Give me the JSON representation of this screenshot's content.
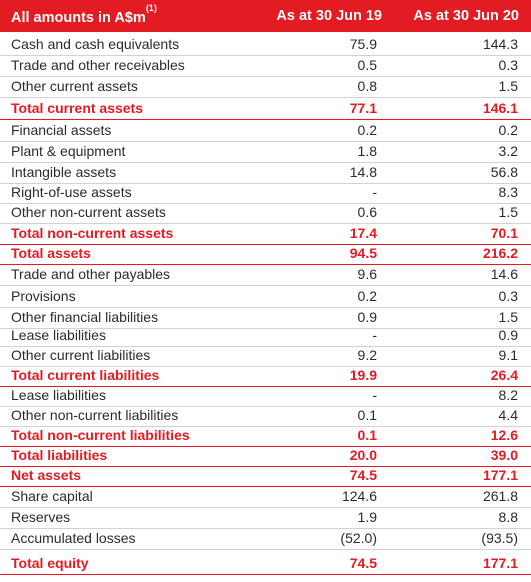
{
  "header": {
    "label": "All amounts in A$m",
    "footnote": "(1)",
    "col1": "As at 30 Jun 19",
    "col2": "As at 30 Jun 20"
  },
  "rows": [
    {
      "label": "Cash and cash equivalents",
      "v1": "75.9",
      "v2": "144.3",
      "total": false
    },
    {
      "label": "Trade and other receivables",
      "v1": "0.5",
      "v2": "0.3",
      "total": false
    },
    {
      "label": "Other current assets",
      "v1": "0.8",
      "v2": "1.5",
      "total": false
    },
    {
      "label": "Total current assets",
      "v1": "77.1",
      "v2": "146.1",
      "total": true
    },
    {
      "label": "Financial assets",
      "v1": "0.2",
      "v2": "0.2",
      "total": false
    },
    {
      "label": "Plant & equipment",
      "v1": "1.8",
      "v2": "3.2",
      "total": false
    },
    {
      "label": "Intangible assets",
      "v1": "14.8",
      "v2": "56.8",
      "total": false
    },
    {
      "label": "Right-of-use assets",
      "v1": "-",
      "v2": "8.3",
      "total": false
    },
    {
      "label": "Other non-current assets",
      "v1": "0.6",
      "v2": "1.5",
      "total": false
    },
    {
      "label": "Total non-current assets",
      "v1": "17.4",
      "v2": "70.1",
      "total": true
    },
    {
      "label": "Total assets",
      "v1": "94.5",
      "v2": "216.2",
      "total": true
    },
    {
      "label": "Trade and other payables",
      "v1": "9.6",
      "v2": "14.6",
      "total": false
    },
    {
      "label": "Provisions",
      "v1": "0.2",
      "v2": "0.3",
      "total": false
    },
    {
      "label": "Other financial liabilities",
      "v1": "0.9",
      "v2": "1.5",
      "total": false
    },
    {
      "label": "Lease liabilities",
      "v1": "-",
      "v2": "0.9",
      "total": false
    },
    {
      "label": "Other current liabilities",
      "v1": "9.2",
      "v2": "9.1",
      "total": false
    },
    {
      "label": "Total current liabilities",
      "v1": "19.9",
      "v2": "26.4",
      "total": true
    },
    {
      "label": "Lease liabilities",
      "v1": "-",
      "v2": "8.2",
      "total": false
    },
    {
      "label": "Other non-current liabilities",
      "v1": "0.1",
      "v2": "4.4",
      "total": false
    },
    {
      "label": "Total non-current liabilities",
      "v1": "0.1",
      "v2": "12.6",
      "total": true
    },
    {
      "label": "Total liabilities",
      "v1": "20.0",
      "v2": "39.0",
      "total": true
    },
    {
      "label": "Net assets",
      "v1": "74.5",
      "v2": "177.1",
      "total": true
    },
    {
      "label": "Share capital",
      "v1": "124.6",
      "v2": "261.8",
      "total": false
    },
    {
      "label": "Reserves",
      "v1": "1.9",
      "v2": "8.8",
      "total": false
    },
    {
      "label": "Accumulated losses",
      "v1": "(52.0)",
      "v2": "(93.5)",
      "total": false
    },
    {
      "label": "Total equity",
      "v1": "74.5",
      "v2": "177.1",
      "total": true
    }
  ],
  "colors": {
    "accent": "#e31b23",
    "text": "#2b2b2b",
    "rule": "#d2d2d2"
  }
}
